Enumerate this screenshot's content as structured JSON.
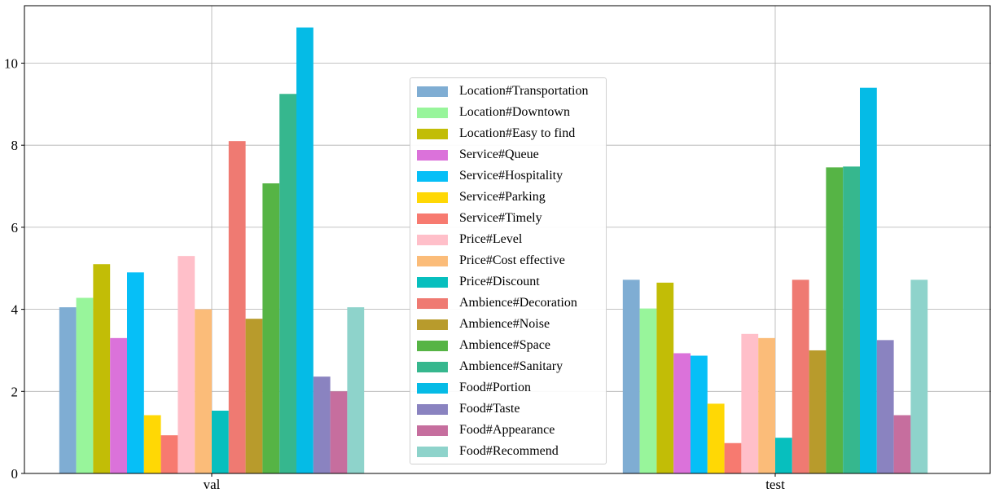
{
  "chart_data": {
    "type": "bar",
    "title": "",
    "xlabel": "",
    "ylabel": "",
    "categories": [
      "val",
      "test"
    ],
    "ylim": [
      0,
      11.4
    ],
    "yticks": [
      0,
      2,
      4,
      6,
      8,
      10
    ],
    "grid": true,
    "legend_position": "center",
    "series": [
      {
        "name": "Location#Transportation",
        "color": "#7fadd3",
        "values": [
          4.05,
          4.72
        ]
      },
      {
        "name": "Location#Downtown",
        "color": "#98f59b",
        "values": [
          4.28,
          4.02
        ]
      },
      {
        "name": "Location#Easy to find",
        "color": "#c2bd06",
        "values": [
          5.1,
          4.65
        ]
      },
      {
        "name": "Service#Queue",
        "color": "#db72da",
        "values": [
          3.3,
          2.93
        ]
      },
      {
        "name": "Service#Hospitality",
        "color": "#06bff7",
        "values": [
          4.9,
          2.87
        ]
      },
      {
        "name": "Service#Parking",
        "color": "#ffd805",
        "values": [
          1.42,
          1.7
        ]
      },
      {
        "name": "Service#Timely",
        "color": "#f77a70",
        "values": [
          0.93,
          0.74
        ]
      },
      {
        "name": "Price#Level",
        "color": "#ffbfc9",
        "values": [
          5.3,
          3.4
        ]
      },
      {
        "name": "Price#Cost effective",
        "color": "#fbbc79",
        "values": [
          4.0,
          3.3
        ]
      },
      {
        "name": "Price#Discount",
        "color": "#07bfbe",
        "values": [
          1.53,
          0.87
        ]
      },
      {
        "name": "Ambience#Decoration",
        "color": "#ef7a72",
        "values": [
          8.1,
          4.72
        ]
      },
      {
        "name": "Ambience#Noise",
        "color": "#b89b2c",
        "values": [
          3.77,
          3.0
        ]
      },
      {
        "name": "Ambience#Space",
        "color": "#56b445",
        "values": [
          7.07,
          7.46
        ]
      },
      {
        "name": "Ambience#Sanitary",
        "color": "#36b78e",
        "values": [
          9.25,
          7.48
        ]
      },
      {
        "name": "Food#Portion",
        "color": "#05bbe6",
        "values": [
          10.87,
          9.4
        ]
      },
      {
        "name": "Food#Taste",
        "color": "#8a83c0",
        "values": [
          2.36,
          3.25
        ]
      },
      {
        "name": "Food#Appearance",
        "color": "#c66e9e",
        "values": [
          2.0,
          1.42
        ]
      },
      {
        "name": "Food#Recommend",
        "color": "#8ed3cb",
        "values": [
          4.05,
          4.72
        ]
      }
    ]
  }
}
